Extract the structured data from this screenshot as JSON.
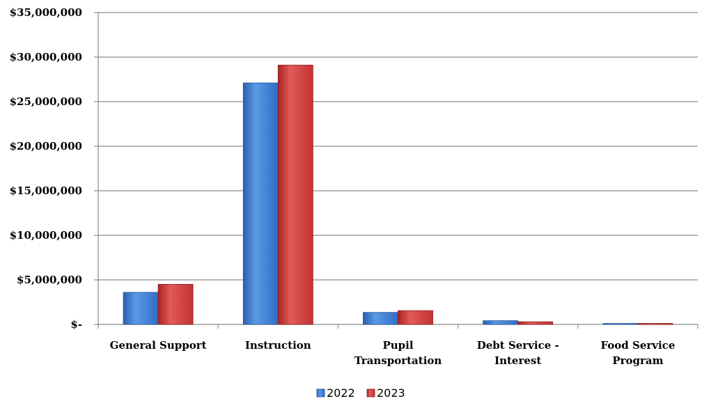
{
  "chart_data": {
    "type": "bar",
    "categories": [
      [
        "General Support"
      ],
      [
        "Instruction"
      ],
      [
        "Pupil",
        "Transportation"
      ],
      [
        "Debt Service -",
        "Interest"
      ],
      [
        "Food Service",
        "Program"
      ]
    ],
    "series": [
      {
        "name": "2022",
        "color": "#3a7bd5",
        "values": [
          3600000,
          27100000,
          1350000,
          420000,
          110000
        ]
      },
      {
        "name": "2023",
        "color": "#d43a3a",
        "values": [
          4500000,
          29100000,
          1550000,
          300000,
          120000
        ]
      }
    ],
    "ylim": [
      0,
      35000000
    ],
    "yticks": [
      {
        "value": 0,
        "label": "$-"
      },
      {
        "value": 5000000,
        "label": "$5,000,000"
      },
      {
        "value": 10000000,
        "label": "$10,000,000"
      },
      {
        "value": 15000000,
        "label": "$15,000,000"
      },
      {
        "value": 20000000,
        "label": "$20,000,000"
      },
      {
        "value": 25000000,
        "label": "$25,000,000"
      },
      {
        "value": 30000000,
        "label": "$30,000,000"
      },
      {
        "value": 35000000,
        "label": "$35,000,000"
      }
    ],
    "grid": true,
    "legend": "bottom-center",
    "title": "",
    "xlabel": "",
    "ylabel": ""
  }
}
